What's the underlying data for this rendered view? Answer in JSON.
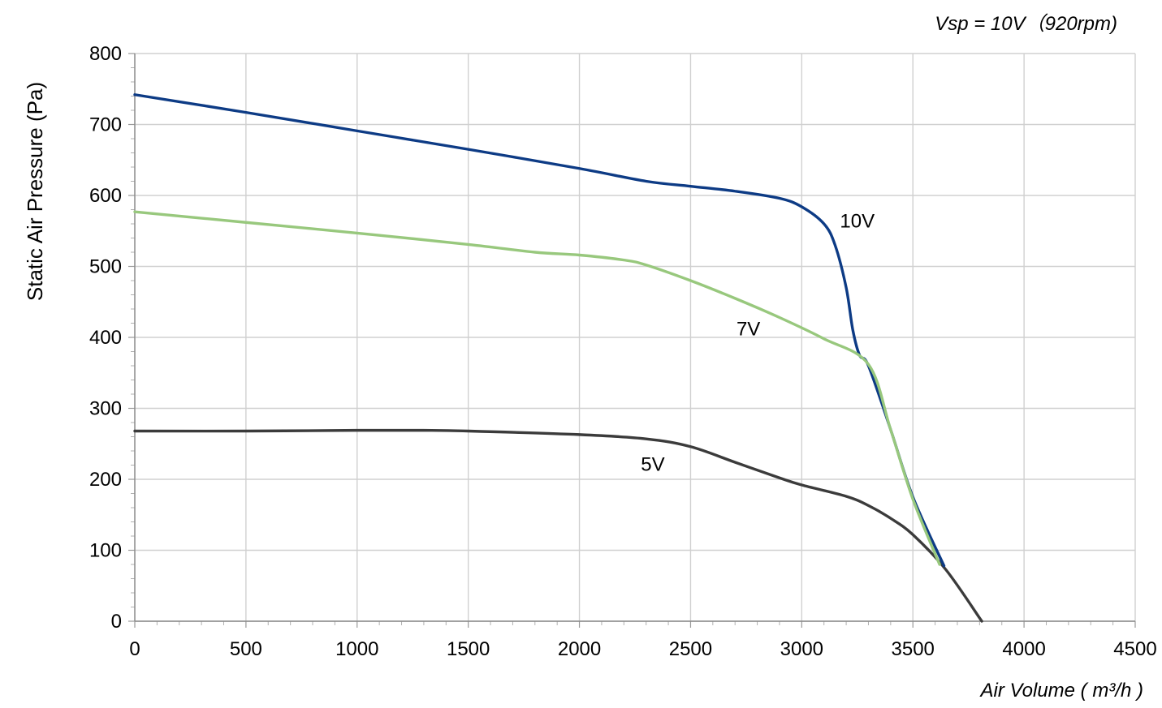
{
  "chart_data": {
    "type": "line",
    "title": "",
    "subtitle": "Vsp = 10V（920rpm)",
    "xlabel": "Air Volume ( m³/h )",
    "ylabel": "Static Air Pressure  (Pa)",
    "xlim": [
      0,
      4500
    ],
    "ylim": [
      0,
      800
    ],
    "x_ticks": [
      "0",
      "500",
      "1000",
      "1500",
      "2000",
      "2500",
      "3000",
      "3500",
      "4000",
      "4500"
    ],
    "y_ticks": [
      "0",
      "100",
      "200",
      "300",
      "400",
      "500",
      "600",
      "700",
      "800"
    ],
    "grid": true,
    "series": [
      {
        "name": "10V",
        "color": "#0d3b85",
        "points": [
          [
            0,
            742
          ],
          [
            500,
            717
          ],
          [
            1000,
            691
          ],
          [
            1500,
            665
          ],
          [
            2000,
            638
          ],
          [
            2300,
            620
          ],
          [
            2500,
            613
          ],
          [
            2700,
            606
          ],
          [
            2900,
            596
          ],
          [
            3000,
            584
          ],
          [
            3100,
            560
          ],
          [
            3150,
            530
          ],
          [
            3200,
            470
          ],
          [
            3230,
            410
          ],
          [
            3260,
            375
          ],
          [
            3300,
            360
          ],
          [
            3400,
            270
          ],
          [
            3500,
            175
          ],
          [
            3640,
            78
          ]
        ]
      },
      {
        "name": "7V",
        "color": "#98c87d",
        "points": [
          [
            0,
            577
          ],
          [
            500,
            562
          ],
          [
            1000,
            547
          ],
          [
            1500,
            531
          ],
          [
            1800,
            520
          ],
          [
            2000,
            516
          ],
          [
            2200,
            509
          ],
          [
            2300,
            502
          ],
          [
            2500,
            480
          ],
          [
            2700,
            455
          ],
          [
            2900,
            428
          ],
          [
            3100,
            398
          ],
          [
            3300,
            362
          ],
          [
            3400,
            270
          ],
          [
            3500,
            172
          ],
          [
            3620,
            80
          ]
        ]
      },
      {
        "name": "5V",
        "color": "#3b3b3b",
        "points": [
          [
            0,
            268
          ],
          [
            500,
            268
          ],
          [
            1000,
            269
          ],
          [
            1300,
            269
          ],
          [
            1500,
            268
          ],
          [
            2000,
            263
          ],
          [
            2300,
            257
          ],
          [
            2500,
            246
          ],
          [
            2700,
            224
          ],
          [
            2900,
            202
          ],
          [
            3000,
            192
          ],
          [
            3200,
            176
          ],
          [
            3300,
            163
          ],
          [
            3400,
            145
          ],
          [
            3500,
            122
          ],
          [
            3650,
            72
          ],
          [
            3810,
            0
          ]
        ]
      }
    ]
  }
}
